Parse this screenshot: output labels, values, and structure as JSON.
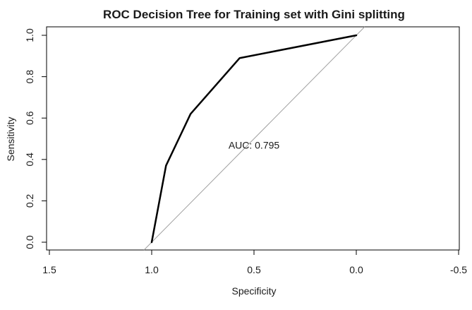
{
  "chart_data": {
    "type": "line",
    "title": "ROC Decision Tree for Training set with Gini splitting",
    "xlabel": "Specificity",
    "ylabel": "Sensitivity",
    "x_reversed": true,
    "xlim": [
      1.5,
      -0.5
    ],
    "ylim": [
      0.0,
      1.0
    ],
    "x_ticks": [
      1.5,
      1.0,
      0.5,
      0.0,
      -0.5
    ],
    "x_tick_labels": [
      "1.5",
      "1.0",
      "0.5",
      "0.0",
      "-0.5"
    ],
    "y_ticks": [
      0.0,
      0.2,
      0.4,
      0.6,
      0.8,
      1.0
    ],
    "y_tick_labels": [
      "0.0",
      "0.2",
      "0.4",
      "0.6",
      "0.8",
      "1.0"
    ],
    "grid": false,
    "series": [
      {
        "color": "#000000",
        "x": [
          1.0,
          0.93,
          0.81,
          0.57,
          0.0
        ],
        "y": [
          0.0,
          0.37,
          0.62,
          0.89,
          1.0
        ]
      }
    ],
    "reference_line": {
      "color": "#a0a0a0",
      "x": [
        1.0,
        0.0
      ],
      "y": [
        0.0,
        1.0
      ]
    },
    "annotations": [
      {
        "text": "AUC: 0.795",
        "x": 0.5,
        "y": 0.47
      }
    ]
  }
}
